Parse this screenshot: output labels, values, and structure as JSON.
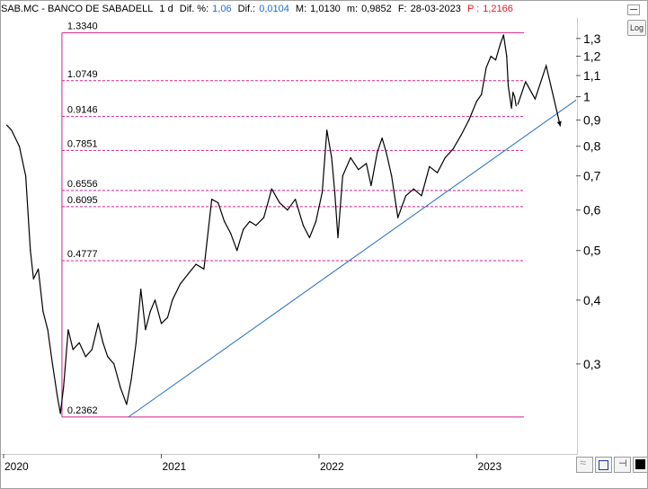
{
  "header": {
    "symbol": "SAB.MC - BANCO DE SABADELL",
    "interval": "1 d",
    "dif_pct_label": "Dif. %:",
    "dif_pct_value": "1,06",
    "dif_label": "Dif.:",
    "dif_value": "0,0104",
    "max_label": "M:",
    "max_value": "1,0130",
    "min_label": "m:",
    "min_value": "0,9852",
    "date_label": "F:",
    "date_value": "28-03-2023",
    "price_label": "P :",
    "price_value": "1,2166"
  },
  "toolbar": {
    "log_label": "Log"
  },
  "colors": {
    "fib": "#d0208c",
    "trend": "#1f6fbf",
    "price": "#000000",
    "accent_blue": "#1a6fd0",
    "accent_red": "#e0202a"
  },
  "icons": [
    "minimize-icon",
    "wave-icon",
    "save-icon",
    "pin-icon",
    "black-square-icon"
  ],
  "chart_data": {
    "type": "line",
    "scale": "log",
    "ylim": [
      0.2,
      1.42
    ],
    "y_ticks": [
      {
        "value": 1.3,
        "label": "1,3"
      },
      {
        "value": 1.2,
        "label": "1,2"
      },
      {
        "value": 1.1,
        "label": "1,1"
      },
      {
        "value": 1.0,
        "label": "1"
      },
      {
        "value": 0.9,
        "label": "0,9"
      },
      {
        "value": 0.8,
        "label": "0,8"
      },
      {
        "value": 0.7,
        "label": "0,7"
      },
      {
        "value": 0.6,
        "label": "0,6"
      },
      {
        "value": 0.5,
        "label": "0,5"
      },
      {
        "value": 0.4,
        "label": "0,4"
      },
      {
        "value": 0.3,
        "label": "0,3"
      }
    ],
    "x_ticks": [
      {
        "value": 2020.0,
        "label": "2020"
      },
      {
        "value": 2021.0,
        "label": "2021"
      },
      {
        "value": 2022.0,
        "label": "2022"
      },
      {
        "value": 2023.0,
        "label": "2023"
      }
    ],
    "xlim": [
      2020.0,
      2023.63
    ],
    "fib_levels": [
      {
        "value": 1.334,
        "label": "1.3340"
      },
      {
        "value": 1.0749,
        "label": "1.0749"
      },
      {
        "value": 0.9146,
        "label": "0.9146"
      },
      {
        "value": 0.7851,
        "label": "0.7851"
      },
      {
        "value": 0.6556,
        "label": "0.6556"
      },
      {
        "value": 0.6095,
        "label": "0.6095"
      },
      {
        "value": 0.4777,
        "label": "0.4777"
      },
      {
        "value": 0.2362,
        "label": "0.2362"
      }
    ],
    "fib_range": {
      "x_start": 2020.37,
      "x_end": 2023.3
    },
    "trendline": {
      "x1": 2020.79,
      "y1": 0.236,
      "x2": 2023.63,
      "y2": 0.985
    },
    "series": [
      {
        "values": [
          [
            2020.02,
            0.88
          ],
          [
            2020.05,
            0.86
          ],
          [
            2020.1,
            0.8
          ],
          [
            2020.14,
            0.7
          ],
          [
            2020.17,
            0.5
          ],
          [
            2020.19,
            0.44
          ],
          [
            2020.22,
            0.46
          ],
          [
            2020.25,
            0.38
          ],
          [
            2020.28,
            0.35
          ],
          [
            2020.31,
            0.3
          ],
          [
            2020.34,
            0.26
          ],
          [
            2020.36,
            0.24
          ],
          [
            2020.38,
            0.27
          ],
          [
            2020.41,
            0.35
          ],
          [
            2020.44,
            0.32
          ],
          [
            2020.48,
            0.33
          ],
          [
            2020.52,
            0.31
          ],
          [
            2020.56,
            0.32
          ],
          [
            2020.6,
            0.36
          ],
          [
            2020.63,
            0.33
          ],
          [
            2020.66,
            0.31
          ],
          [
            2020.7,
            0.3
          ],
          [
            2020.74,
            0.27
          ],
          [
            2020.78,
            0.25
          ],
          [
            2020.81,
            0.28
          ],
          [
            2020.84,
            0.33
          ],
          [
            2020.87,
            0.42
          ],
          [
            2020.9,
            0.35
          ],
          [
            2020.93,
            0.38
          ],
          [
            2020.96,
            0.4
          ],
          [
            2021.0,
            0.36
          ],
          [
            2021.04,
            0.37
          ],
          [
            2021.07,
            0.4
          ],
          [
            2021.12,
            0.43
          ],
          [
            2021.17,
            0.45
          ],
          [
            2021.22,
            0.47
          ],
          [
            2021.27,
            0.46
          ],
          [
            2021.32,
            0.63
          ],
          [
            2021.36,
            0.62
          ],
          [
            2021.4,
            0.57
          ],
          [
            2021.44,
            0.54
          ],
          [
            2021.48,
            0.5
          ],
          [
            2021.52,
            0.55
          ],
          [
            2021.56,
            0.57
          ],
          [
            2021.6,
            0.56
          ],
          [
            2021.65,
            0.58
          ],
          [
            2021.7,
            0.66
          ],
          [
            2021.75,
            0.62
          ],
          [
            2021.8,
            0.6
          ],
          [
            2021.85,
            0.63
          ],
          [
            2021.9,
            0.56
          ],
          [
            2021.94,
            0.53
          ],
          [
            2021.98,
            0.57
          ],
          [
            2022.02,
            0.65
          ],
          [
            2022.05,
            0.86
          ],
          [
            2022.08,
            0.76
          ],
          [
            2022.1,
            0.65
          ],
          [
            2022.12,
            0.53
          ],
          [
            2022.15,
            0.7
          ],
          [
            2022.2,
            0.76
          ],
          [
            2022.25,
            0.72
          ],
          [
            2022.3,
            0.74
          ],
          [
            2022.33,
            0.67
          ],
          [
            2022.37,
            0.78
          ],
          [
            2022.4,
            0.83
          ],
          [
            2022.43,
            0.77
          ],
          [
            2022.46,
            0.7
          ],
          [
            2022.5,
            0.58
          ],
          [
            2022.55,
            0.64
          ],
          [
            2022.6,
            0.66
          ],
          [
            2022.65,
            0.64
          ],
          [
            2022.7,
            0.73
          ],
          [
            2022.75,
            0.71
          ],
          [
            2022.8,
            0.76
          ],
          [
            2022.85,
            0.79
          ],
          [
            2022.9,
            0.84
          ],
          [
            2022.95,
            0.9
          ],
          [
            2023.0,
            0.98
          ],
          [
            2023.03,
            1.01
          ],
          [
            2023.06,
            1.14
          ],
          [
            2023.09,
            1.2
          ],
          [
            2023.12,
            1.18
          ],
          [
            2023.15,
            1.27
          ],
          [
            2023.17,
            1.32
          ],
          [
            2023.19,
            1.2
          ],
          [
            2023.2,
            1.05
          ],
          [
            2023.22,
            0.95
          ],
          [
            2023.23,
            1.02
          ],
          [
            2023.24,
            1.0
          ],
          [
            2023.25,
            0.96
          ]
        ]
      }
    ],
    "projection": [
      [
        2023.26,
        0.965
      ],
      [
        2023.31,
        1.07
      ],
      [
        2023.37,
        0.99
      ],
      [
        2023.44,
        1.15
      ],
      [
        2023.53,
        0.875
      ]
    ]
  }
}
